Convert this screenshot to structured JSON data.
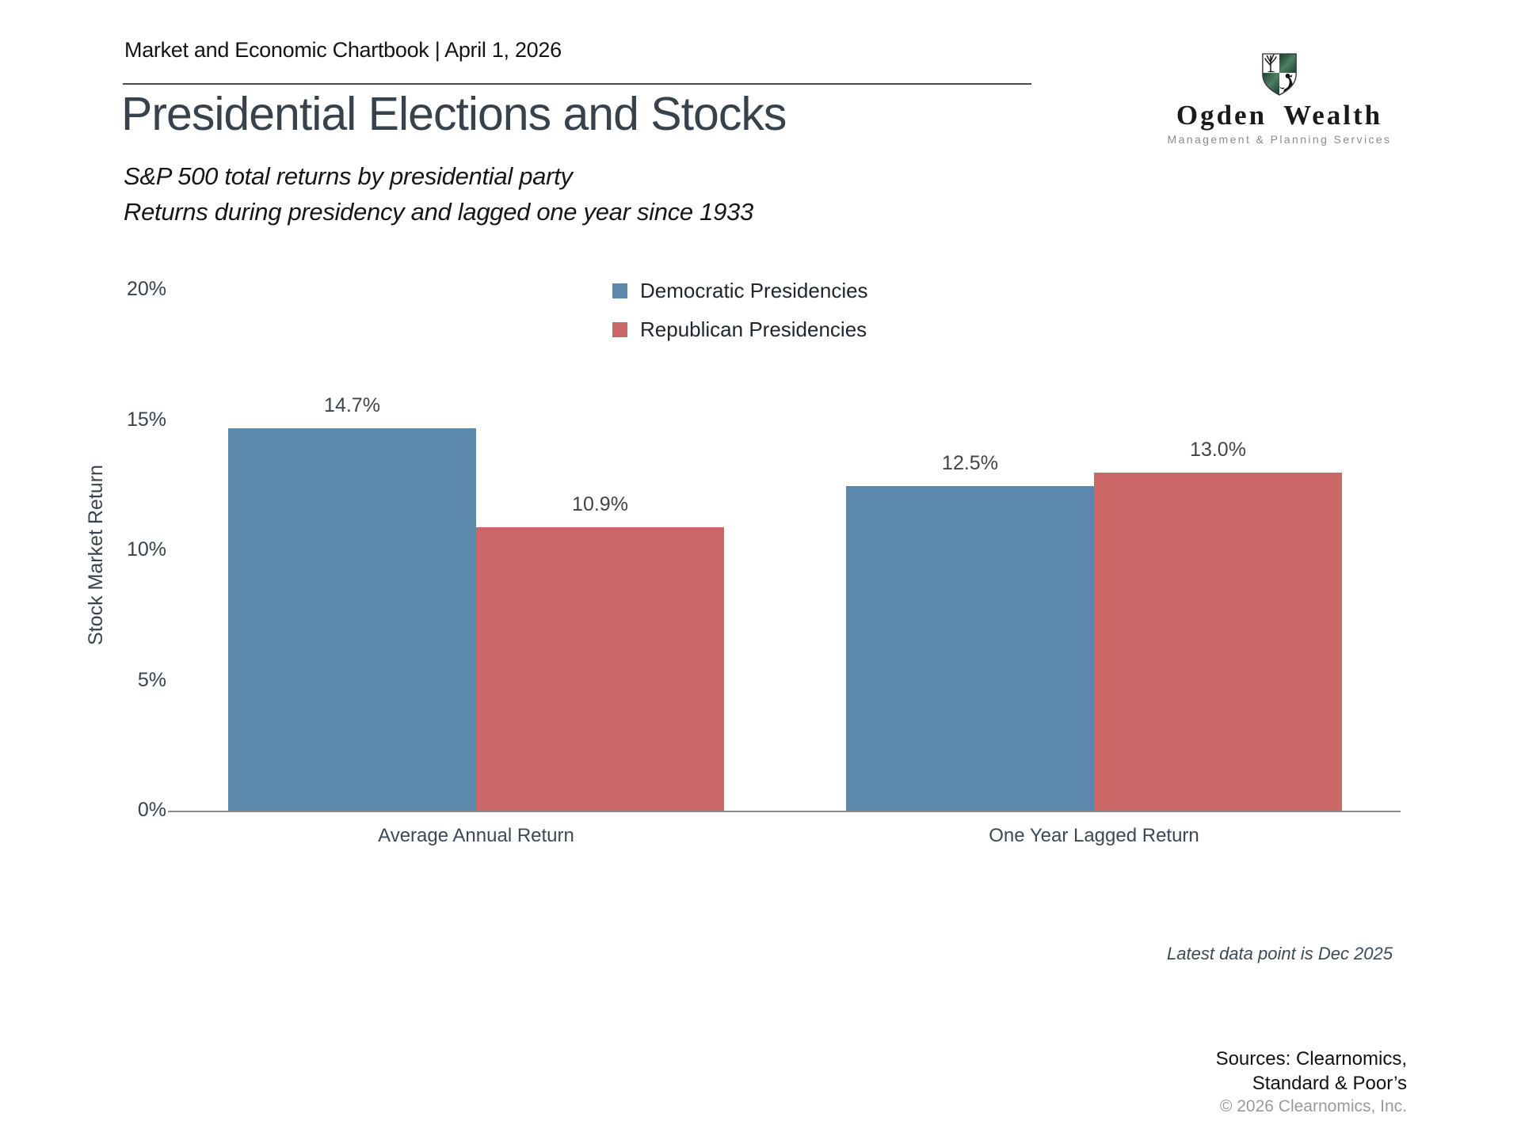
{
  "header": {
    "text": "Market and Economic Chartbook | April 1, 2026"
  },
  "title": "Presidential Elections and Stocks",
  "subtitle": {
    "line1": "S&P 500 total returns by presidential party",
    "line2": "Returns during presidency and lagged one year since 1933"
  },
  "logo": {
    "name": "Ogden Wealth",
    "tagline": "Management & Planning Services",
    "shield_green": "#2d5948",
    "shield_outline": "#3a3a3a"
  },
  "chart_data": {
    "type": "bar",
    "categories": [
      "Average Annual Return",
      "One Year Lagged Return"
    ],
    "series": [
      {
        "name": "Democratic Presidencies",
        "color": "#5c89ab",
        "values": [
          14.7,
          12.5
        ]
      },
      {
        "name": "Republican Presidencies",
        "color": "#cc6767",
        "values": [
          10.9,
          13.0
        ]
      }
    ],
    "value_labels": [
      "14.7%",
      "10.9%",
      "12.5%",
      "13.0%"
    ],
    "title": "",
    "xlabel": "",
    "ylabel": "Stock Market Return",
    "yticks": [
      {
        "label": "20%",
        "value": 20
      },
      {
        "label": "15%",
        "value": 15
      },
      {
        "label": "10%",
        "value": 10
      },
      {
        "label": "5%",
        "value": 5
      },
      {
        "label": "0%",
        "value": 0
      }
    ],
    "ylim": [
      0,
      20
    ],
    "grid": false,
    "legend_position": "top-center"
  },
  "annotation": "Latest data point is Dec 2025",
  "footer": {
    "sources_line1": "Sources: Clearnomics,",
    "sources_line2": "Standard & Poor’s",
    "copyright": "© 2026 Clearnomics, Inc."
  }
}
